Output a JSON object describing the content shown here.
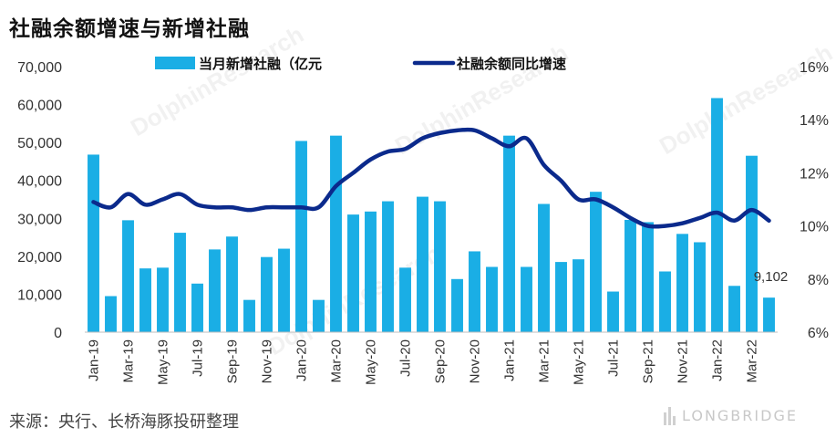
{
  "header": {
    "title": "社融余额增速与新增社融"
  },
  "footer": {
    "source": "来源：央行、长桥海豚投研整理",
    "brand": "LONGBRIDGE"
  },
  "colors": {
    "bar": "#1aaee5",
    "line": "#0b2a8c"
  },
  "chart_data": {
    "type": "bar",
    "legend_position": "top",
    "grid": false,
    "months": [
      "Jan-19",
      "Feb-19",
      "Mar-19",
      "Apr-19",
      "May-19",
      "Jun-19",
      "Jul-19",
      "Aug-19",
      "Sep-19",
      "Oct-19",
      "Nov-19",
      "Dec-19",
      "Jan-20",
      "Feb-20",
      "Mar-20",
      "Apr-20",
      "May-20",
      "Jun-20",
      "Jul-20",
      "Aug-20",
      "Sep-20",
      "Oct-20",
      "Nov-20",
      "Dec-20",
      "Jan-21",
      "Feb-21",
      "Mar-21",
      "Apr-21",
      "May-21",
      "Jun-21",
      "Jul-21",
      "Aug-21",
      "Sep-21",
      "Oct-21",
      "Nov-21",
      "Dec-21",
      "Jan-22",
      "Feb-22",
      "Mar-22",
      "Apr-22"
    ],
    "x_tick_labels": [
      "Jan-19",
      "Mar-19",
      "May-19",
      "Jul-19",
      "Sep-19",
      "Nov-19",
      "Jan-20",
      "Mar-20",
      "May-20",
      "Jul-20",
      "Sep-20",
      "Nov-20",
      "Jan-21",
      "Mar-21",
      "May-21",
      "Jul-21",
      "Sep-21",
      "Nov-21",
      "Jan-22",
      "Mar-22"
    ],
    "y_left": {
      "ylim": [
        0,
        70000
      ],
      "ticks": [
        "0",
        "10,000",
        "20,000",
        "30,000",
        "40,000",
        "50,000",
        "60,000",
        "70,000"
      ]
    },
    "y_right": {
      "ylim": [
        6,
        16
      ],
      "ticks": [
        "6%",
        "8%",
        "10%",
        "12%",
        "14%",
        "16%"
      ]
    },
    "series": [
      {
        "name": "当月新增社融（亿元",
        "type": "bar",
        "axis": "left",
        "values": [
          46800,
          9500,
          29500,
          16800,
          17000,
          26200,
          12800,
          21800,
          25200,
          8500,
          19800,
          22000,
          50400,
          8500,
          51800,
          31000,
          31800,
          34500,
          17000,
          35700,
          34500,
          14000,
          21300,
          17200,
          51800,
          17200,
          33800,
          18500,
          19200,
          37000,
          10700,
          29600,
          29000,
          16000,
          25900,
          23700,
          61700,
          12200,
          46500,
          9102
        ]
      },
      {
        "name": "社融余额同比增速",
        "type": "line",
        "axis": "right",
        "values": [
          10.9,
          10.7,
          11.2,
          10.8,
          11.0,
          11.2,
          10.8,
          10.7,
          10.7,
          10.6,
          10.7,
          10.7,
          10.7,
          10.7,
          11.5,
          12.0,
          12.5,
          12.8,
          12.9,
          13.3,
          13.5,
          13.6,
          13.6,
          13.3,
          13.0,
          13.3,
          12.3,
          11.7,
          11.0,
          11.0,
          10.7,
          10.3,
          10.0,
          10.0,
          10.1,
          10.3,
          10.5,
          10.2,
          10.6,
          10.2
        ]
      }
    ],
    "annotations": [
      {
        "text": "9,102",
        "x": "Apr-22",
        "y": 9102
      }
    ]
  }
}
